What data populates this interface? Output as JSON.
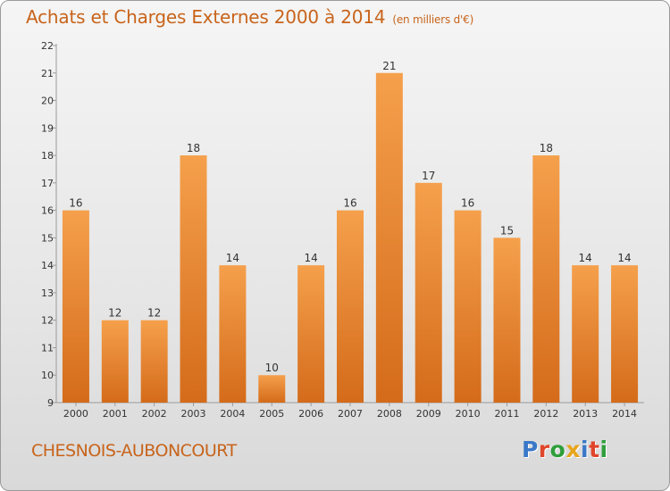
{
  "header": {
    "title": "Achats et Charges Externes 2000 à 2014",
    "unit": "(en milliers d'€)"
  },
  "footer": {
    "commune": "CHESNOIS-AUBONCOURT",
    "logo": "Proxiti"
  },
  "colors": {
    "accent": "#c8641b",
    "bar_top": "#f5a04c",
    "bar_bottom": "#d46b1a"
  },
  "chart_data": {
    "type": "bar",
    "title": "Achats et Charges Externes 2000 à 2014",
    "subtitle": "(en milliers d'€)",
    "xlabel": "",
    "ylabel": "",
    "categories": [
      "2000",
      "2001",
      "2002",
      "2003",
      "2004",
      "2005",
      "2006",
      "2007",
      "2008",
      "2009",
      "2010",
      "2011",
      "2012",
      "2013",
      "2014"
    ],
    "values": [
      16,
      12,
      12,
      18,
      14,
      10,
      14,
      16,
      21,
      17,
      16,
      15,
      18,
      14,
      14
    ],
    "ylim": [
      9,
      22
    ],
    "yticks": [
      9,
      10,
      11,
      12,
      13,
      14,
      15,
      16,
      17,
      18,
      19,
      20,
      21,
      22
    ],
    "grid": false,
    "legend": "none"
  }
}
